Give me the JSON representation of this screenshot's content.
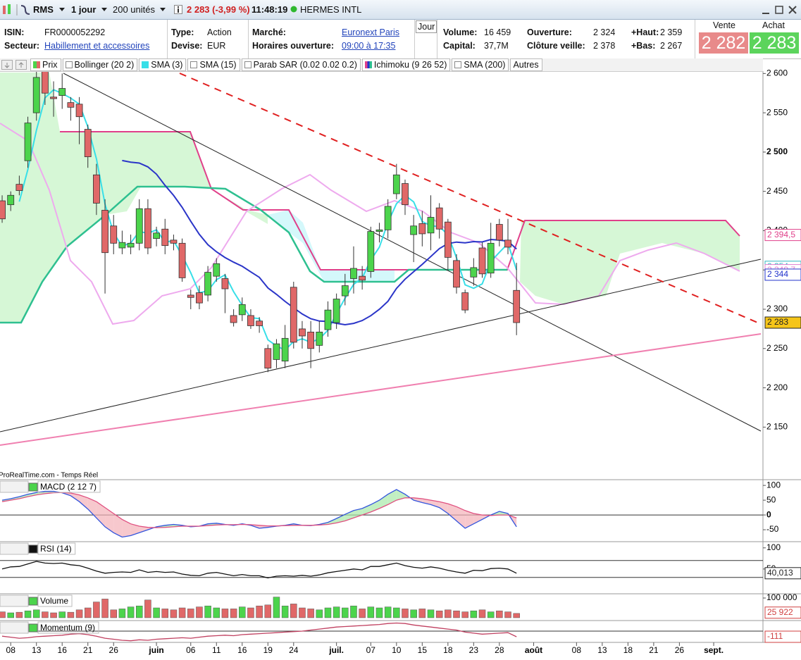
{
  "toolbar": {
    "symbol": "RMS",
    "period": "1 jour",
    "units": "200 unités",
    "quote": "2 283 (-3,99 %)",
    "time": "11:48:19",
    "name": "HERMES INTL"
  },
  "info": {
    "isin_label": "ISIN:",
    "isin": "FR0000052292",
    "sector_label": "Secteur:",
    "sector": "Habillement et accessoires",
    "type_label": "Type:",
    "type": "Action",
    "currency_label": "Devise:",
    "currency": "EUR",
    "market_label": "Marché:",
    "market": "Euronext Paris",
    "hours_label": "Horaires ouverture:",
    "hours": "09:00 à 17:35",
    "period_button": "Jour",
    "volume_label": "Volume:",
    "volume": "16 459",
    "capital_label": "Capital:",
    "capital": "37,7M",
    "open_label": "Ouverture:",
    "open": "2 324",
    "prev_close_label": "Clôture veille:",
    "prev_close": "2 378",
    "high_label": "+Haut:",
    "high": "2 359",
    "low_label": "+Bas:",
    "low": "2 267",
    "bid_label": "Vente",
    "bid": "2 282",
    "ask_label": "Achat",
    "ask": "2 283"
  },
  "tabs": [
    "Prix",
    "Bollinger (20 2)",
    "Parab SAR (0.02 0.02 0.2)",
    "Ichimoku (9 26 52)",
    "SMA (200)",
    "Autres"
  ],
  "source": "ProRealTime.com - Temps Réel",
  "chart_data": [
    {
      "type": "candlestick",
      "up_color": "#4cd44c",
      "down_color": "#e06868",
      "open": [
        2438,
        2433,
        2459,
        2489,
        2550,
        2604,
        2570,
        2572,
        2563,
        2561,
        2529,
        2471,
        2426,
        2406,
        2378,
        2379,
        2384,
        2428,
        2390,
        2402,
        2388,
        2384,
        2318,
        2321,
        2318,
        2342,
        2339,
        2292,
        2293,
        2292,
        2285,
        2250,
        2236,
        2234,
        2328,
        2275,
        2271,
        2254,
        2274,
        2283,
        2317,
        2339,
        2342,
        2348,
        2399,
        2401,
        2447,
        2460,
        2395,
        2409,
        2397,
        2429,
        2411,
        2362,
        2321,
        2341,
        2378,
        2346,
        2408,
        2388,
        2324
      ],
      "high": [
        2445,
        2450,
        2470,
        2545,
        2605,
        2610,
        2590,
        2600,
        2570,
        2570,
        2535,
        2485,
        2440,
        2420,
        2400,
        2395,
        2440,
        2440,
        2405,
        2415,
        2395,
        2390,
        2325,
        2330,
        2355,
        2365,
        2345,
        2300,
        2315,
        2300,
        2290,
        2255,
        2262,
        2280,
        2335,
        2285,
        2285,
        2285,
        2310,
        2320,
        2345,
        2380,
        2355,
        2405,
        2410,
        2440,
        2485,
        2465,
        2420,
        2425,
        2445,
        2435,
        2415,
        2370,
        2325,
        2365,
        2385,
        2410,
        2415,
        2415,
        2359
      ],
      "low": [
        2410,
        2425,
        2445,
        2480,
        2540,
        2560,
        2545,
        2555,
        2540,
        2510,
        2480,
        2420,
        2320,
        2370,
        2370,
        2370,
        2375,
        2370,
        2380,
        2370,
        2375,
        2335,
        2300,
        2300,
        2310,
        2335,
        2295,
        2278,
        2285,
        2275,
        2270,
        2220,
        2225,
        2225,
        2250,
        2250,
        2225,
        2245,
        2265,
        2275,
        2305,
        2320,
        2325,
        2340,
        2385,
        2390,
        2440,
        2420,
        2360,
        2380,
        2375,
        2390,
        2350,
        2320,
        2295,
        2330,
        2340,
        2340,
        2380,
        2370,
        2267
      ],
      "close": [
        2415,
        2445,
        2451,
        2537,
        2595,
        2575,
        2568,
        2581,
        2557,
        2545,
        2494,
        2435,
        2372,
        2384,
        2385,
        2384,
        2428,
        2378,
        2397,
        2381,
        2384,
        2340,
        2315,
        2308,
        2347,
        2358,
        2326,
        2283,
        2306,
        2279,
        2279,
        2225,
        2256,
        2263,
        2258,
        2266,
        2250,
        2271,
        2299,
        2313,
        2330,
        2352,
        2337,
        2399,
        2401,
        2431,
        2471,
        2433,
        2406,
        2396,
        2417,
        2402,
        2366,
        2328,
        2299,
        2353,
        2345,
        2384,
        2388,
        2379,
        2283
      ],
      "overlays": [
        {
          "name": "SMA (3)",
          "period": 3,
          "color": "#38dfe8"
        },
        {
          "name": "SMA (15)",
          "period": 15,
          "color": "#2b35c8"
        }
      ],
      "xlim": [
        -0.25,
        88.5
      ],
      "xticks": [
        {
          "value": 1,
          "label": "08"
        },
        {
          "value": 4,
          "label": "13"
        },
        {
          "value": 7,
          "label": "16"
        },
        {
          "value": 10,
          "label": "21"
        },
        {
          "value": 13,
          "label": "26"
        },
        {
          "value": 18,
          "label": "juin"
        },
        {
          "value": 22,
          "label": "06"
        },
        {
          "value": 25,
          "label": "11"
        },
        {
          "value": 28,
          "label": "16"
        },
        {
          "value": 31,
          "label": "19"
        },
        {
          "value": 34,
          "label": "24"
        },
        {
          "value": 39,
          "label": "juil."
        },
        {
          "value": 43,
          "label": "07"
        },
        {
          "value": 46,
          "label": "10"
        },
        {
          "value": 49,
          "label": "15"
        },
        {
          "value": 52,
          "label": "18"
        },
        {
          "value": 55,
          "label": "23"
        },
        {
          "value": 58,
          "label": "28"
        },
        {
          "value": 62,
          "label": "août"
        },
        {
          "value": 67,
          "label": "08"
        },
        {
          "value": 70,
          "label": "13"
        },
        {
          "value": 73,
          "label": "18"
        },
        {
          "value": 76,
          "label": "21"
        },
        {
          "value": 79,
          "label": "26"
        },
        {
          "value": 83,
          "label": "sept."
        }
      ],
      "ylim": [
        2084,
        2603
      ],
      "yticks": [
        {
          "value": 2600,
          "label": "2 600"
        },
        {
          "value": 2550,
          "label": "2 550"
        },
        {
          "value": 2500,
          "label": "2 500"
        },
        {
          "value": 2450,
          "label": "2 450"
        },
        {
          "value": 2400,
          "label": "2 400"
        },
        {
          "value": 2350,
          "label": "2 350"
        },
        {
          "value": 2300,
          "label": "2 300"
        },
        {
          "value": 2250,
          "label": "2 250"
        },
        {
          "value": 2200,
          "label": "2 200"
        },
        {
          "value": 2150,
          "label": "2 150"
        }
      ],
      "tags": [
        {
          "value": 2394.5,
          "label": "2 394,5",
          "color": "#e0408a"
        },
        {
          "value": 2354,
          "label": "2 354",
          "color": "#30b8c0"
        },
        {
          "value": 2349.7,
          "label": "2 349,7",
          "color": "#e080d0"
        },
        {
          "value": 2344,
          "label": "2 344",
          "color": "#2233cc"
        },
        {
          "value": 2283,
          "label": "2 283",
          "color": "#222",
          "fill": "#f5c518"
        }
      ]
    },
    {
      "type": "line",
      "title": "MACD (2 12 7)",
      "fill_up": "#a8e8a8",
      "fill_down": "#f4b0b8",
      "series": [
        {
          "color": "#3355dd",
          "values": [
            50,
            55,
            62,
            70,
            76,
            80,
            80,
            75,
            65,
            45,
            20,
            -10,
            -40,
            -60,
            -75,
            -70,
            -60,
            -50,
            -40,
            -35,
            -32,
            -35,
            -40,
            -38,
            -30,
            -28,
            -32,
            -35,
            -30,
            -35,
            -45,
            -42,
            -38,
            -35,
            -30,
            -35,
            -36,
            -32,
            -25,
            -12,
            2,
            15,
            22,
            35,
            50,
            70,
            86,
            70,
            50,
            42,
            35,
            25,
            5,
            -20,
            -45,
            -30,
            -15,
            0,
            12,
            5,
            -40
          ]
        },
        {
          "color": "#e05080",
          "values": [
            45,
            50,
            55,
            62,
            68,
            72,
            75,
            76,
            74,
            68,
            58,
            45,
            25,
            5,
            -15,
            -30,
            -38,
            -42,
            -43,
            -42,
            -40,
            -38,
            -38,
            -38,
            -36,
            -34,
            -33,
            -33,
            -32,
            -33,
            -35,
            -37,
            -37,
            -36,
            -35,
            -35,
            -35,
            -34,
            -32,
            -27,
            -20,
            -10,
            0,
            10,
            22,
            35,
            50,
            58,
            58,
            55,
            50,
            45,
            38,
            28,
            15,
            5,
            0,
            -2,
            0,
            0,
            -10
          ]
        }
      ],
      "ylim": [
        -88,
        117
      ],
      "yticks": [
        100,
        50,
        0,
        -50
      ],
      "levels": [
        0
      ]
    },
    {
      "type": "line",
      "title": "RSI (14)",
      "series": [
        {
          "color": "#111",
          "values": [
            50,
            55,
            56,
            62,
            68,
            64,
            63,
            64,
            60,
            58,
            52,
            45,
            40,
            42,
            43,
            42,
            48,
            42,
            44,
            42,
            43,
            38,
            35,
            34,
            40,
            42,
            38,
            34,
            37,
            34,
            34,
            29,
            33,
            34,
            33,
            35,
            33,
            36,
            41,
            44,
            47,
            50,
            48,
            56,
            56,
            60,
            64,
            58,
            54,
            52,
            55,
            52,
            47,
            43,
            40,
            47,
            46,
            51,
            52,
            50,
            40.013
          ]
        }
      ],
      "ylim": [
        -7,
        113
      ],
      "yticks": [
        100,
        50
      ],
      "levels": [
        70,
        30
      ],
      "tags": [
        {
          "value": 40.013,
          "label": "40,013",
          "color": "#222"
        }
      ]
    },
    {
      "type": "bar",
      "title": "Volume",
      "up_color": "#4cd44c",
      "down_color": "#e06868",
      "values": [
        30000,
        25000,
        28000,
        35000,
        40000,
        30000,
        25000,
        30000,
        28000,
        40000,
        50000,
        80000,
        95000,
        40000,
        45000,
        55000,
        60000,
        90000,
        50000,
        45000,
        40000,
        50000,
        45000,
        55000,
        60000,
        50000,
        45000,
        45000,
        55000,
        50000,
        60000,
        65000,
        105000,
        60000,
        70000,
        50000,
        45000,
        40000,
        50000,
        55000,
        50000,
        60000,
        45000,
        55000,
        50000,
        55000,
        50000,
        45000,
        40000,
        45000,
        40000,
        35000,
        40000,
        35000,
        30000,
        35000,
        40000,
        30000,
        35000,
        30000,
        22000
      ],
      "ylim": [
        -10714,
        117857
      ],
      "yticks": [
        {
          "value": 100000,
          "label": "100 000"
        }
      ],
      "tags": [
        {
          "value": 25922,
          "label": "25 922",
          "color": "#d04040"
        }
      ]
    },
    {
      "type": "line",
      "title": "Momentum (9)",
      "series": [
        {
          "color": "#c04060",
          "values": [
            -100,
            -120,
            -140,
            -130,
            -110,
            -100,
            -90,
            -80,
            -60,
            -50,
            -70,
            -100,
            -140,
            -160,
            -180,
            -190,
            -170,
            -180,
            -160,
            -150,
            -140,
            -130,
            -140,
            -120,
            -100,
            -90,
            -80,
            -90,
            -70,
            -60,
            -50,
            -40,
            -30,
            -20,
            -10,
            0,
            20,
            40,
            60,
            80,
            90,
            100,
            110,
            120,
            130,
            150,
            160,
            150,
            120,
            100,
            80,
            60,
            40,
            20,
            -20,
            -40,
            -60,
            -50,
            -40,
            -30,
            -111
          ]
        }
      ],
      "ylim": [
        -222,
        194
      ],
      "levels": [
        0
      ],
      "tags": [
        {
          "value": -111,
          "label": "-111",
          "color": "#d04040"
        }
      ]
    }
  ]
}
